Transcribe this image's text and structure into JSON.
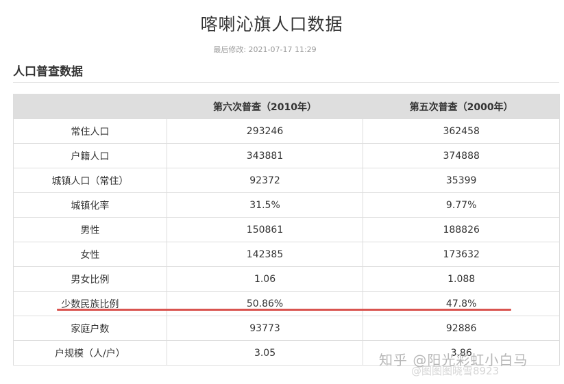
{
  "page": {
    "title": "喀喇沁旗人口数据",
    "modified": "最后修改: 2021-07-17 11:29",
    "section_title": "人口普查数据"
  },
  "table": {
    "headers": [
      "",
      "第六次普查（2010年）",
      "第五次普查（2000年）"
    ],
    "rows": [
      [
        "常住人口",
        "293246",
        "362458"
      ],
      [
        "户籍人口",
        "343881",
        "374888"
      ],
      [
        "城镇人口（常住）",
        "92372",
        "35399"
      ],
      [
        "城镇化率",
        "31.5%",
        "9.77%"
      ],
      [
        "男性",
        "150861",
        "188826"
      ],
      [
        "女性",
        "142385",
        "173632"
      ],
      [
        "男女比例",
        "1.06",
        "1.088"
      ],
      [
        "少数民族比例",
        "50.86%",
        "47.8%"
      ],
      [
        "家庭户数",
        "93773",
        "92886"
      ],
      [
        "户规模（人/户）",
        "3.05",
        "3.86"
      ]
    ]
  },
  "watermark": {
    "text": "知乎 @阳光彩虹小白马",
    "sub": "@图图图晓雪8923"
  },
  "colors": {
    "header_bg": "#dedede",
    "highlight_line": "#d9534f"
  }
}
